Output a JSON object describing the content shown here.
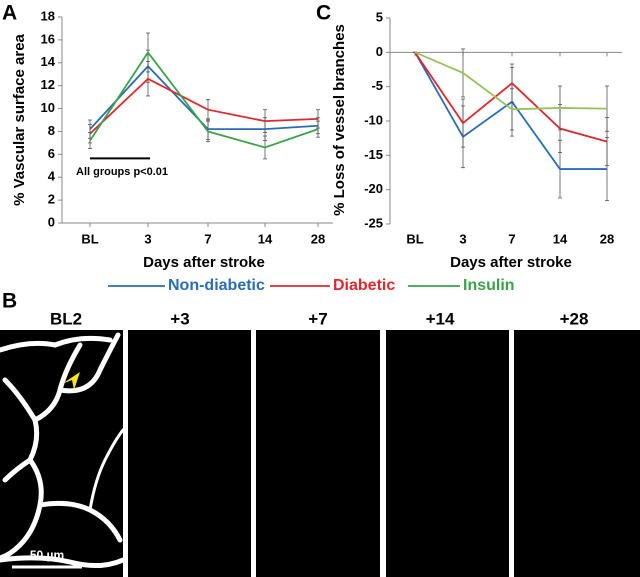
{
  "panels": {
    "a": "A",
    "b": "B",
    "c": "C"
  },
  "images": {
    "labels": [
      "BL2",
      "+3",
      "+7",
      "+14",
      "+28"
    ],
    "scale_bar": "50 µm"
  },
  "chart_data": [
    {
      "type": "line",
      "ylabel": "% Vascular surface area",
      "xlabel": "Days after stroke",
      "annotation": "All groups p<0.01",
      "categories": [
        "BL",
        "3",
        "7",
        "14",
        "28"
      ],
      "ylim": [
        0,
        18
      ],
      "yticks": [
        0,
        2,
        4,
        6,
        8,
        10,
        12,
        14,
        16,
        18
      ],
      "series": [
        {
          "name": "Non-diabetic",
          "color": "#2a6db5",
          "values": [
            8.2,
            13.7,
            8.2,
            8.2,
            8.5
          ],
          "errors": [
            0.8,
            1.4,
            0.9,
            1.0,
            0.7
          ]
        },
        {
          "name": "Diabetic",
          "color": "#e0282c",
          "values": [
            7.8,
            12.6,
            9.9,
            8.9,
            9.1
          ],
          "errors": [
            0.8,
            1.5,
            0.9,
            1.0,
            0.8
          ]
        },
        {
          "name": "Insulin",
          "color": "#3aa34a",
          "values": [
            7.2,
            14.9,
            8.0,
            6.6,
            8.2
          ],
          "errors": [
            0.7,
            1.7,
            0.9,
            1.0,
            0.7
          ]
        }
      ]
    },
    {
      "type": "line",
      "ylabel": "% Loss of vessel branches",
      "xlabel": "Days after stroke",
      "categories": [
        "BL",
        "3",
        "7",
        "14",
        "28"
      ],
      "ylim": [
        -25,
        5
      ],
      "yticks": [
        -25,
        -20,
        -15,
        -10,
        -5,
        0,
        5
      ],
      "series": [
        {
          "name": "Non-diabetic",
          "color": "#2a6db5",
          "values": [
            0,
            -12.3,
            -7.2,
            -17,
            -17
          ],
          "errors": [
            0,
            4.5,
            5,
            4.2,
            4.6
          ]
        },
        {
          "name": "Diabetic",
          "color": "#e0282c",
          "values": [
            0,
            -10.3,
            -4.5,
            -11.1,
            -13
          ],
          "errors": [
            0,
            3.5,
            2.8,
            3.5,
            3.5
          ]
        },
        {
          "name": "Insulin",
          "color": "#94c35a",
          "values": [
            0,
            -3,
            -8.3,
            -8.1,
            -8.2
          ],
          "errors": [
            0,
            3.5,
            3,
            3.2,
            3.3
          ]
        }
      ]
    }
  ]
}
